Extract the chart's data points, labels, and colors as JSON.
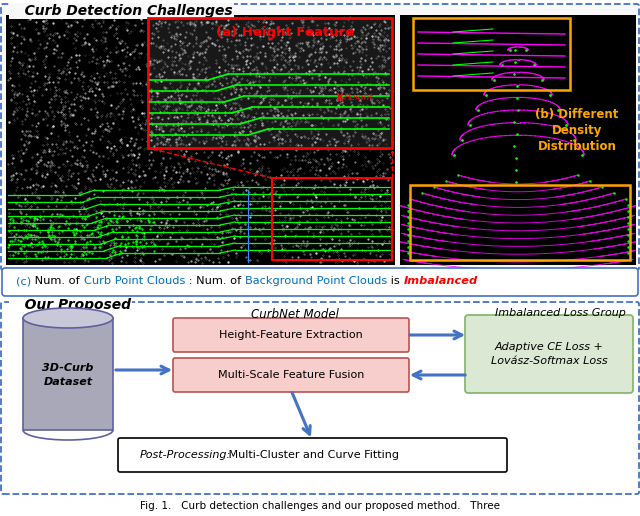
{
  "title_top": "Curb Detection Challenges",
  "title_bottom": "Our Proposed",
  "caption": "Fig. 1.   Curb detection challenges and our proposed method.   Three",
  "label_c_text_parts": [
    {
      "text": "(c)",
      "color": "#0070C0",
      "style": "normal"
    },
    {
      "text": " Num. of ",
      "color": "#000000",
      "style": "normal"
    },
    {
      "text": "Curb Point Clouds",
      "color": "#0070C0",
      "style": "normal"
    },
    {
      "text": " : Num. of ",
      "color": "#000000",
      "style": "normal"
    },
    {
      "text": "Background Point Clouds",
      "color": "#0070C0",
      "style": "normal"
    },
    {
      "text": " is ",
      "color": "#000000",
      "style": "normal"
    },
    {
      "text": "Imbalanced",
      "color": "#FF0000",
      "style": "italic"
    }
  ],
  "bg_color": "#FFFFFF",
  "dotted_line_color": "#4472C4",
  "label_a_text": "(a) Height Feature",
  "label_a_color": "#FF0000",
  "label_b_text": "(b) Different\nDensity\nDistribution",
  "label_b_color": "#FFA500",
  "box1_text1": "Height-Feature Extraction",
  "box1_text2": "Multi-Scale Feature Fusion",
  "box1_bg": "#F8CECC",
  "box1_border": "#B85450",
  "box2_text": "Adaptive CE Loss +\nLovász-Softmax Loss",
  "box2_bg": "#DAE8D4",
  "box2_border": "#82B366",
  "box3_text_italic": "Post-Processing:",
  "box3_text_normal": " Multi-Cluster and Curve Fitting",
  "box3_bg": "#FFFFFF",
  "box3_border": "#000000",
  "curbnet_label": "CurbNet Model",
  "imbalanced_label": "Imbalanced Loss Group",
  "dataset_label": "3D-Curb\nDataset",
  "arrow_color": "#4472C4",
  "cyl_body_color": "#A8A8B8",
  "cyl_top_color": "#C8C8D8",
  "cyl_border_color": "#6060A0"
}
